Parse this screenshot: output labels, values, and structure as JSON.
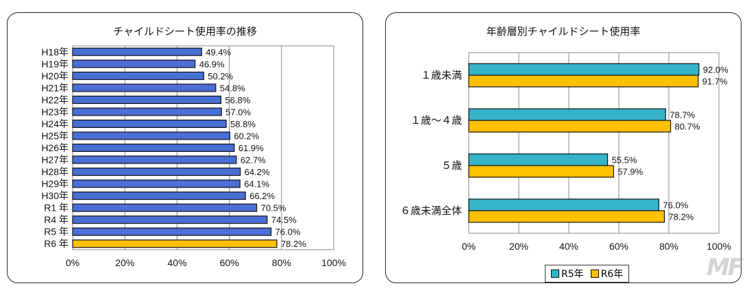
{
  "chart_data": [
    {
      "type": "bar",
      "orientation": "horizontal",
      "title": "チャイルドシート使用率の推移",
      "categories": [
        "H18年",
        "H19年",
        "H20年",
        "H21年",
        "H22年",
        "H23年",
        "H24年",
        "H25年",
        "H26年",
        "H27年",
        "H28年",
        "H29年",
        "H30年",
        "R1 年",
        "R4 年",
        "R5 年",
        "R6 年"
      ],
      "values": [
        49.4,
        46.9,
        50.2,
        54.8,
        56.8,
        57.0,
        58.8,
        60.2,
        61.9,
        62.7,
        64.2,
        64.1,
        66.2,
        70.5,
        74.5,
        76.0,
        78.2
      ],
      "value_labels": [
        "49.4%",
        "46.9%",
        "50.2%",
        "54.8%",
        "56.8%",
        "57.0%",
        "58.8%",
        "60.2%",
        "61.9%",
        "62.7%",
        "64.2%",
        "64.1%",
        "66.2%",
        "70.5%",
        "74.5%",
        "76.0%",
        "78.2%"
      ],
      "highlight_index": 16,
      "xlim": [
        0,
        100
      ],
      "x_ticks": [
        "0%",
        "20%",
        "40%",
        "60%",
        "80%",
        "100%"
      ],
      "grid": "vertical",
      "colors": {
        "bar": "#4a6fd6",
        "highlight": "#ffc000",
        "edge": "#111111"
      }
    },
    {
      "type": "bar",
      "orientation": "horizontal",
      "title": "年齢層別チャイルドシート使用率",
      "categories": [
        "１歳未満",
        "１歳～４歳",
        "５歳",
        "６歳未満全体"
      ],
      "series": [
        {
          "name": "R5年",
          "values": [
            92.0,
            78.7,
            55.5,
            76.0
          ],
          "labels": [
            "92.0%",
            "78.7%",
            "55.5%",
            "76.0%"
          ],
          "color": "#35b3c9"
        },
        {
          "name": "R6年",
          "values": [
            91.7,
            80.7,
            57.9,
            78.2
          ],
          "labels": [
            "91.7%",
            "80.7%",
            "57.9%",
            "78.2%"
          ],
          "color": "#ffc000"
        }
      ],
      "xlim": [
        0,
        100
      ],
      "x_ticks": [
        "0%",
        "20%",
        "40%",
        "60%",
        "80%",
        "100%"
      ],
      "grid": "vertical",
      "legend": "bottom"
    }
  ],
  "watermark": "MF"
}
